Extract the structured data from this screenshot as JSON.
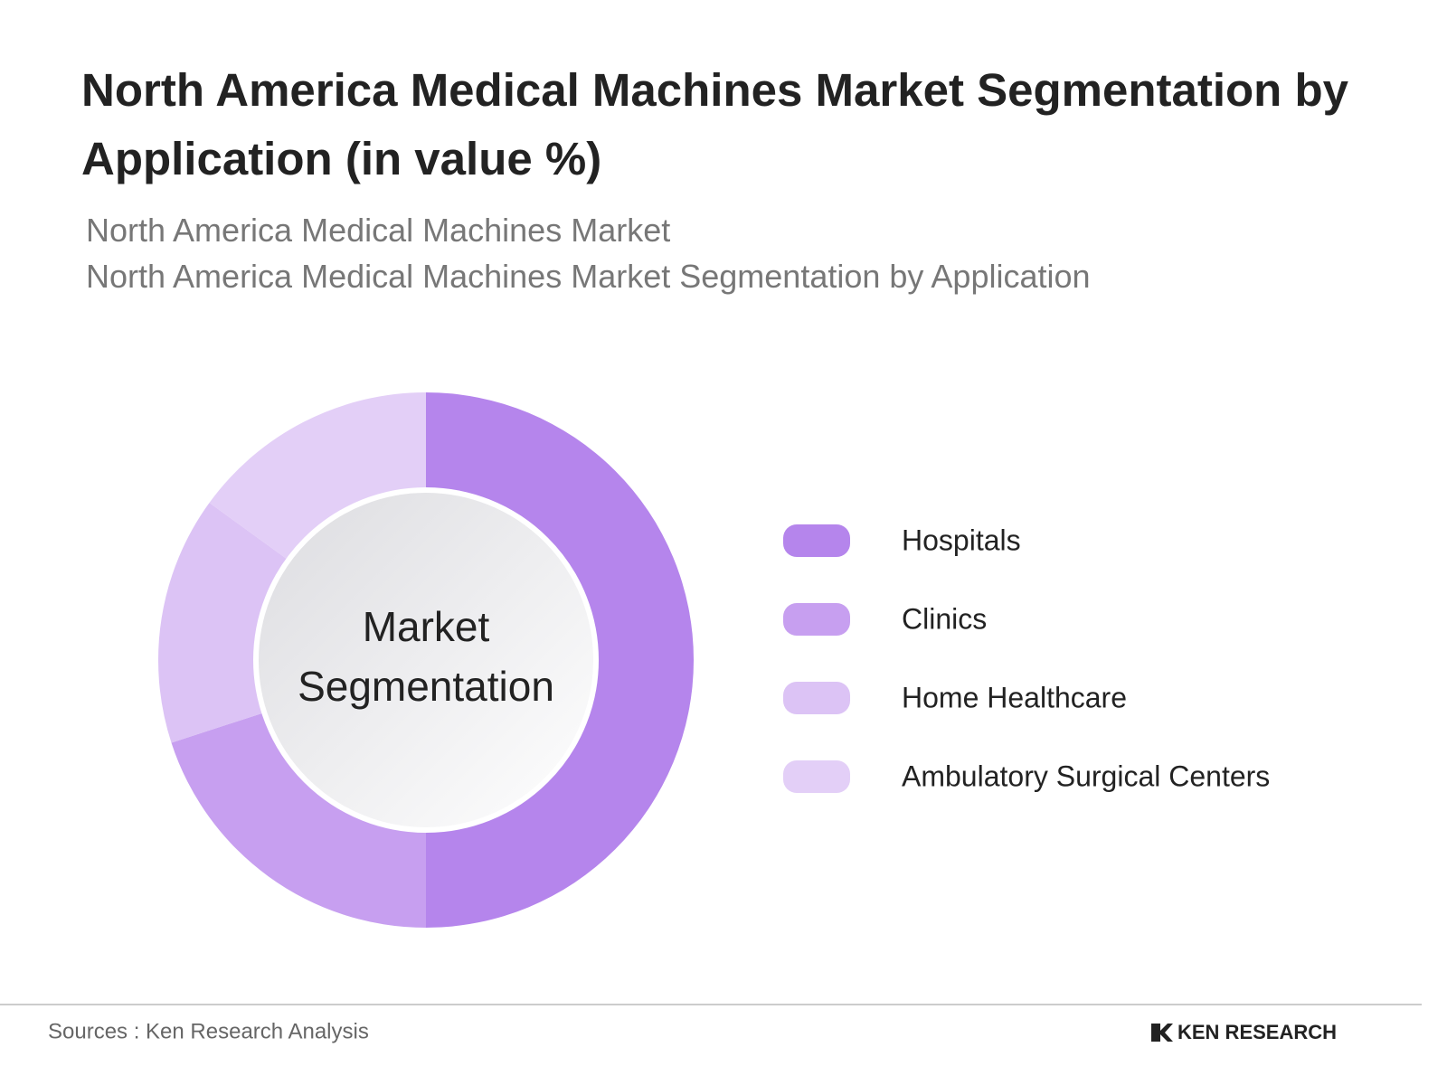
{
  "header": {
    "title": "North America Medical Machines Market Segmentation by Application (in value %)",
    "subtitles": [
      "North America Medical Machines Market",
      "North America Medical Machines Market Segmentation by Application"
    ]
  },
  "chart_data": {
    "type": "donut",
    "center_label": "Market Segmentation",
    "categories": [
      "Hospitals",
      "Clinics",
      "Home Healthcare",
      "Ambulatory Surgical Centers"
    ],
    "values": [
      50,
      20,
      15,
      15
    ],
    "colors": [
      "#b585ec",
      "#c79ff0",
      "#dcc3f5",
      "#e3cff7"
    ],
    "legend": "right"
  },
  "footer": {
    "source": "Sources : Ken Research Analysis",
    "logo": "KEN RESEARCH"
  }
}
